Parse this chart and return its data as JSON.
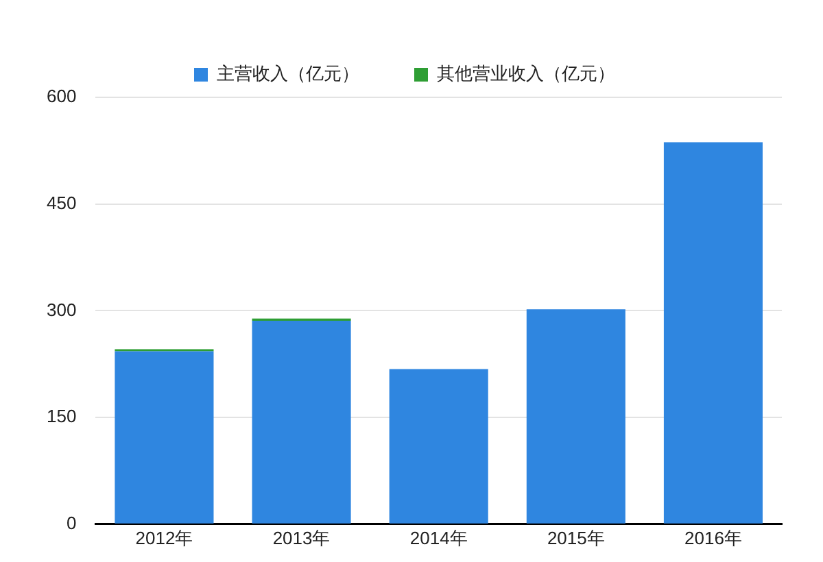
{
  "chart_data": {
    "type": "bar",
    "stacked": true,
    "categories": [
      "2012年",
      "2013年",
      "2014年",
      "2015年",
      "2016年"
    ],
    "series": [
      {
        "name": "主营收入（亿元）",
        "color": "#2f86e0",
        "values": [
          243,
          286,
          218,
          302,
          537
        ]
      },
      {
        "name": "其他营业收入（亿元）",
        "color": "#2e9e34",
        "values": [
          3,
          3,
          null,
          null,
          null
        ]
      }
    ],
    "ylim": [
      0,
      600
    ],
    "yticks": [
      0,
      150,
      300,
      450,
      600
    ],
    "grid": "y",
    "legend": "top"
  }
}
